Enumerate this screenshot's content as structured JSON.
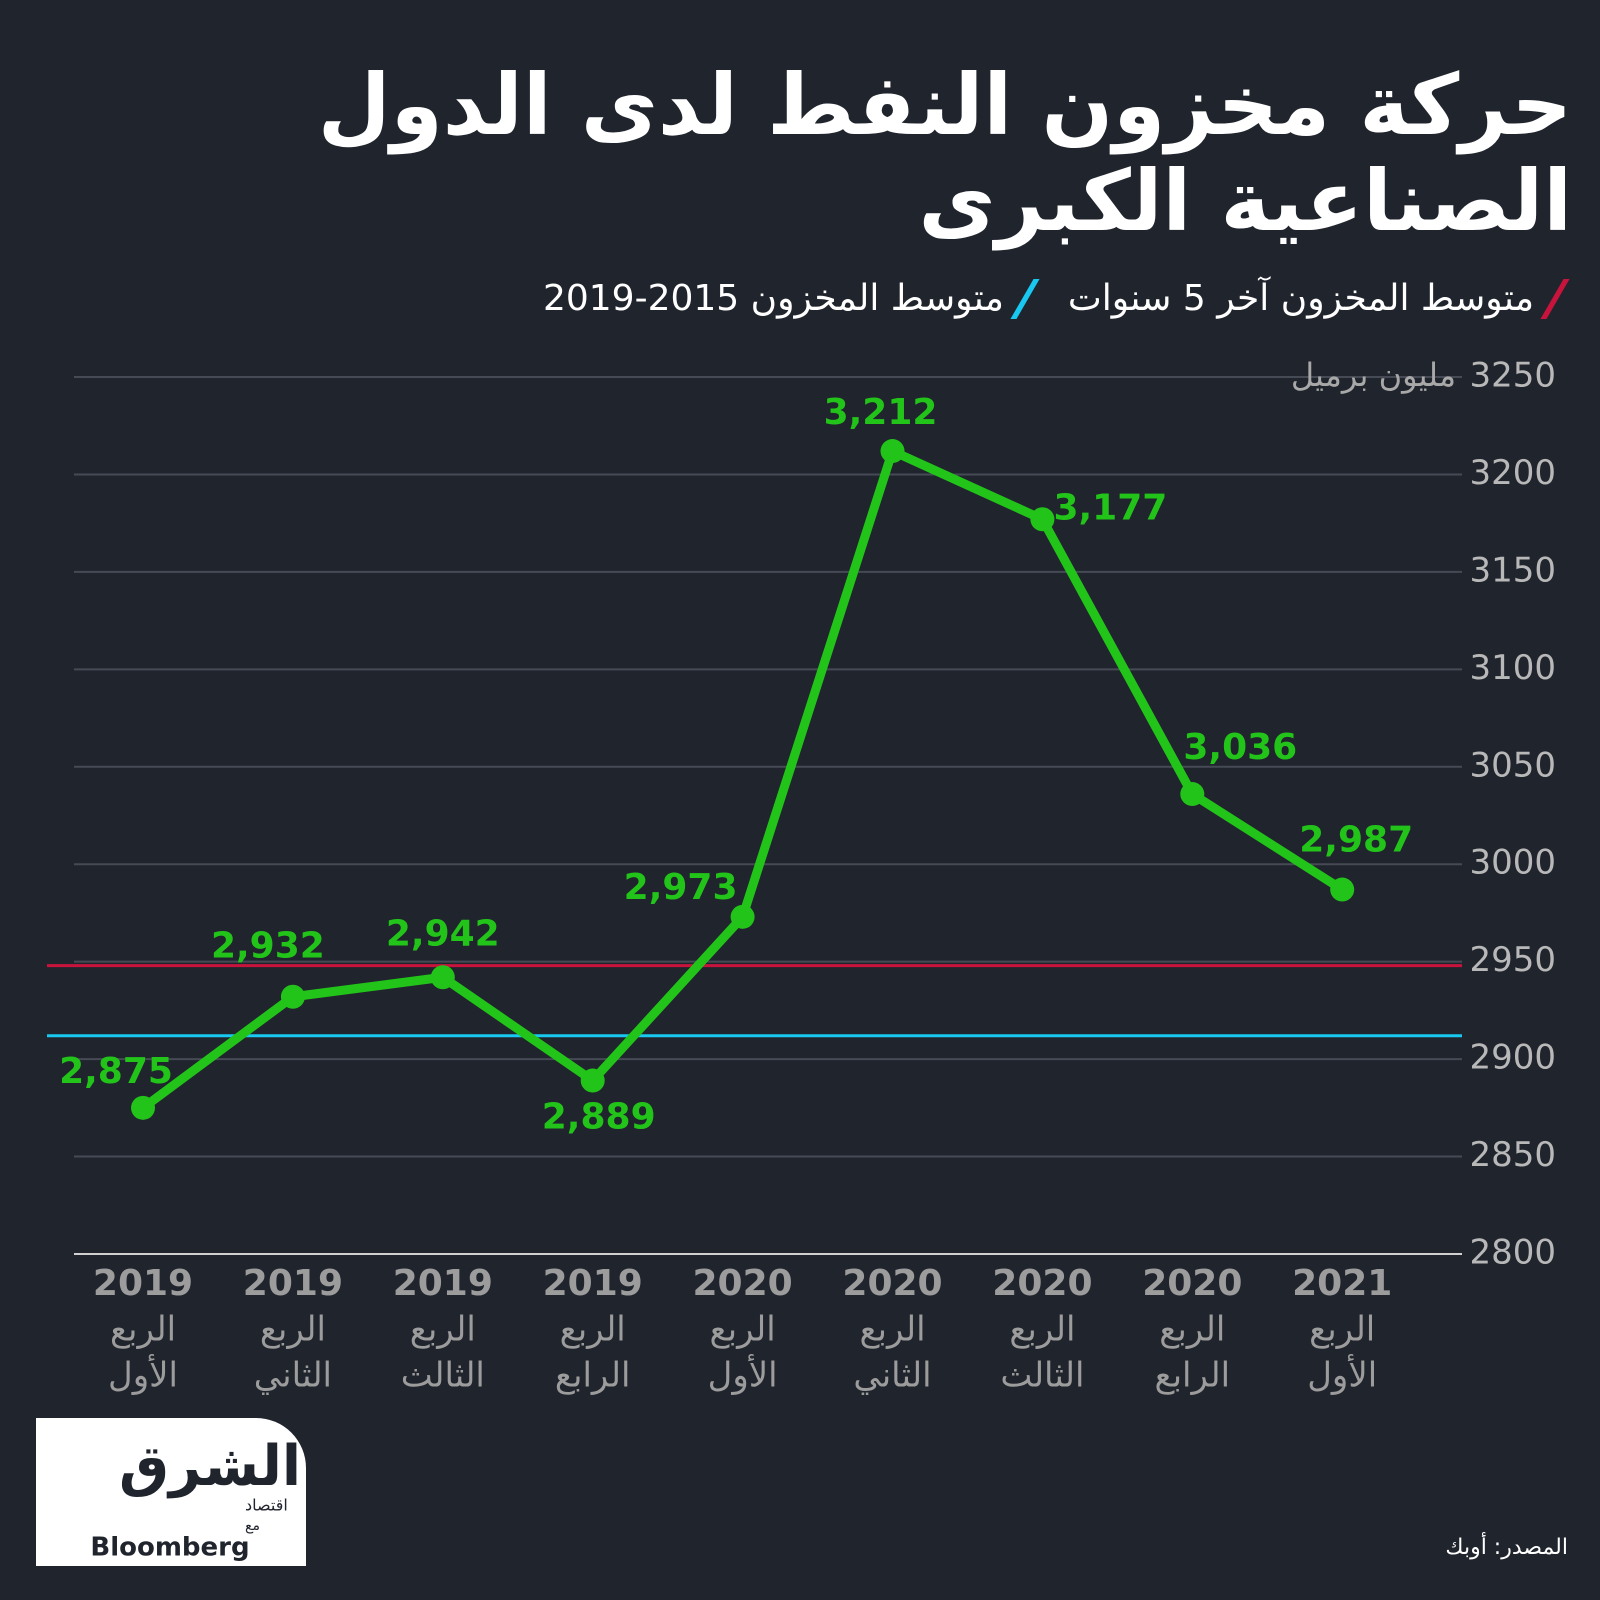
{
  "chart_data": {
    "type": "line",
    "title": [
      "حركة مخزون النفط لدى الدول",
      "الصناعية الكبرى"
    ],
    "y_label": "مليون برميل",
    "categories": [
      [
        "2019",
        "الربع",
        "الأول"
      ],
      [
        "2019",
        "الربع",
        "الثاني"
      ],
      [
        "2019",
        "الربع",
        "الثالث"
      ],
      [
        "2019",
        "الربع",
        "الرابع"
      ],
      [
        "2020",
        "الربع",
        "الأول"
      ],
      [
        "2020",
        "الربع",
        "الثاني"
      ],
      [
        "2020",
        "الربع",
        "الثالث"
      ],
      [
        "2020",
        "الربع",
        "الرابع"
      ],
      [
        "2021",
        "الربع",
        "الأول"
      ]
    ],
    "series": [
      {
        "color": "#22c41a",
        "values": [
          2875,
          2932,
          2942,
          2889,
          2973,
          3212,
          3177,
          3036,
          2987
        ],
        "value_labels": [
          "2,875",
          "2,932",
          "2,942",
          "2,889",
          "2,973",
          "3,212",
          "3,177",
          "3,036",
          "2,987"
        ]
      }
    ],
    "reference_lines": [
      {
        "name": "متوسط المخزون آخر 5 سنوات",
        "color": "#c8143c",
        "value": 2948
      },
      {
        "name": "متوسط المخزون 2015-2019",
        "color": "#18c8f0",
        "value": 2912
      }
    ],
    "ylim": [
      2800,
      3250
    ],
    "yticks": [
      2800,
      2850,
      2900,
      2950,
      3000,
      3050,
      3100,
      3150,
      3200,
      3250
    ],
    "grid": true
  },
  "source": "المصدر: أوبك",
  "logo": {
    "brand": "الشرق",
    "sub": "اقتصاد",
    "with": "مع",
    "partner": "Bloomberg"
  }
}
